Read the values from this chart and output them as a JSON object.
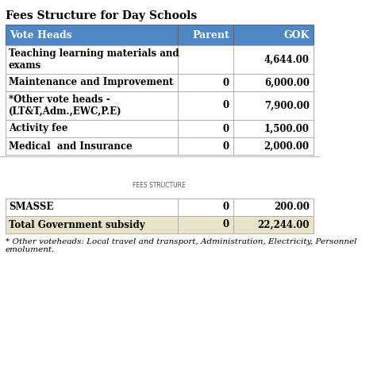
{
  "title": "Fees Structure for Day Schools",
  "header": [
    "Vote Heads",
    "Parent",
    "GOK"
  ],
  "rows": [
    {
      "vote": "Teaching learning materials and\nexams",
      "parent": "",
      "gok": "4,644.00"
    },
    {
      "vote": "Maintenance and Improvement",
      "parent": "0",
      "gok": "6,000.00"
    },
    {
      "vote": "*Other vote heads -\n(LT&T,Adm.,EWC,P.E)",
      "parent": "0",
      "gok": "7,900.00"
    },
    {
      "vote": "Activity fee",
      "parent": "0",
      "gok": "1,500.00"
    },
    {
      "vote": "Medical  and Insurance",
      "parent": "0",
      "gok": "2,000.00"
    }
  ],
  "bottom_label": "FEES STRUCTURE",
  "bottom_rows": [
    {
      "vote": "SMASSE",
      "parent": "0",
      "gok": "200.00",
      "highlight": false
    },
    {
      "vote": "Total Government subsidy",
      "parent": "0",
      "gok": "22,244.00",
      "highlight": true
    }
  ],
  "footnote": "* Other voteheads: Local travel and transport, Administration, Electricity, Personnel\nemolument.",
  "header_bg": "#4f86c6",
  "header_text": "#ffffff",
  "row_bg": "#ffffff",
  "row_border": "#999999",
  "highlight_bg": "#e8e4c9",
  "title_color": "#000000",
  "bottom_header_line": "#999999"
}
